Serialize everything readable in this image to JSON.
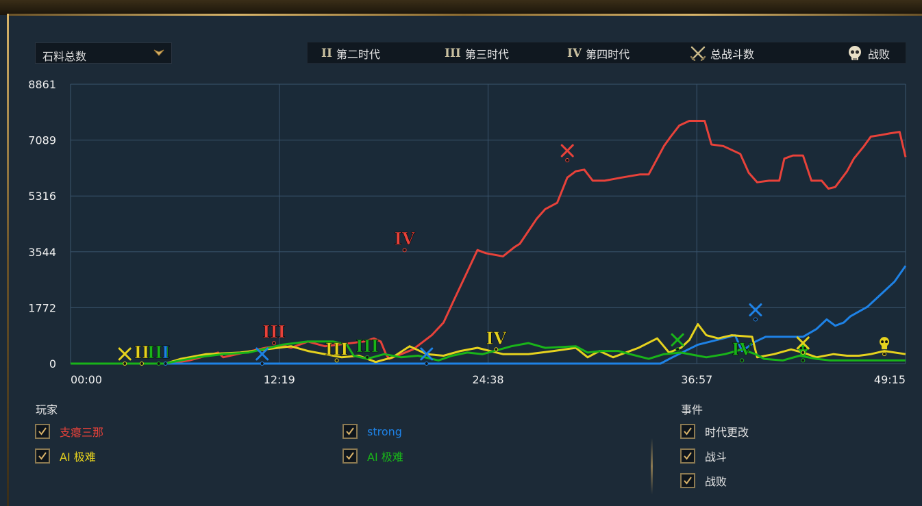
{
  "metric_dropdown": {
    "label": "石料总数",
    "icon": "chevron-down-icon"
  },
  "legend": [
    {
      "numeral": "II",
      "label": "第二时代"
    },
    {
      "numeral": "III",
      "label": "第三时代"
    },
    {
      "numeral": "IV",
      "label": "第四时代"
    },
    {
      "icon": "crossed-swords-icon",
      "label": "总战斗数"
    },
    {
      "icon": "skull-icon",
      "label": "战败"
    }
  ],
  "chart_data": {
    "type": "line",
    "y_tick_labels": [
      "0",
      "1772",
      "3544",
      "5316",
      "7089",
      "8861"
    ],
    "ylim": [
      0,
      8861
    ],
    "x_tick_labels": [
      "00:00",
      "12:19",
      "24:38",
      "36:57",
      "49:15"
    ],
    "xlim_minutes": [
      0,
      49.25
    ],
    "grid": true,
    "series": [
      {
        "name": "支瘪三那",
        "color": "#e8423a",
        "points": [
          [
            0,
            0
          ],
          [
            2,
            0
          ],
          [
            5.7,
            0
          ],
          [
            7,
            100
          ],
          [
            8.7,
            350
          ],
          [
            9,
            200
          ],
          [
            11.5,
            500
          ],
          [
            12.5,
            580
          ],
          [
            13,
            500
          ],
          [
            14,
            700
          ],
          [
            15,
            550
          ],
          [
            17.3,
            700
          ],
          [
            17.9,
            800
          ],
          [
            18.3,
            700
          ],
          [
            18.6,
            300
          ],
          [
            18.8,
            150
          ],
          [
            19.5,
            300
          ],
          [
            20.2,
            450
          ],
          [
            21.3,
            900
          ],
          [
            22,
            1300
          ],
          [
            22.6,
            2000
          ],
          [
            23.3,
            2800
          ],
          [
            24,
            3600
          ],
          [
            24.5,
            3500
          ],
          [
            25.5,
            3400
          ],
          [
            26.2,
            3700
          ],
          [
            26.5,
            3800
          ],
          [
            27.5,
            4600
          ],
          [
            28,
            4900
          ],
          [
            28.7,
            5100
          ],
          [
            29.3,
            5900
          ],
          [
            29.8,
            6100
          ],
          [
            30.3,
            6150
          ],
          [
            30.8,
            5800
          ],
          [
            31.5,
            5800
          ],
          [
            32.5,
            5900
          ],
          [
            33.6,
            6000
          ],
          [
            34.1,
            6000
          ],
          [
            34.7,
            6600
          ],
          [
            35,
            6900
          ],
          [
            35.4,
            7200
          ],
          [
            35.9,
            7550
          ],
          [
            36.5,
            7700
          ],
          [
            37.4,
            7700
          ],
          [
            37.8,
            6950
          ],
          [
            38.5,
            6900
          ],
          [
            39.5,
            6650
          ],
          [
            40,
            6050
          ],
          [
            40.5,
            5750
          ],
          [
            41.2,
            5800
          ],
          [
            41.8,
            5800
          ],
          [
            42.1,
            6500
          ],
          [
            42.6,
            6600
          ],
          [
            43.2,
            6600
          ],
          [
            43.7,
            5800
          ],
          [
            44.3,
            5800
          ],
          [
            44.7,
            5550
          ],
          [
            45.1,
            5600
          ],
          [
            45.8,
            6100
          ],
          [
            46.2,
            6500
          ],
          [
            46.8,
            6900
          ],
          [
            47.2,
            7200
          ],
          [
            47.8,
            7250
          ],
          [
            48.3,
            7300
          ],
          [
            48.9,
            7350
          ],
          [
            49.25,
            6550
          ]
        ]
      },
      {
        "name": "strong",
        "color": "#1e82e6",
        "points": [
          [
            0,
            0
          ],
          [
            12.8,
            0
          ],
          [
            14,
            0
          ],
          [
            21,
            0
          ],
          [
            29.7,
            0
          ],
          [
            34.8,
            0
          ],
          [
            35.5,
            200
          ],
          [
            37,
            600
          ],
          [
            38.5,
            800
          ],
          [
            39.2,
            900
          ],
          [
            39.6,
            400
          ],
          [
            40.4,
            700
          ],
          [
            41,
            850
          ],
          [
            42,
            850
          ],
          [
            43.2,
            850
          ],
          [
            44,
            1100
          ],
          [
            44.6,
            1400
          ],
          [
            45.1,
            1200
          ],
          [
            45.6,
            1300
          ],
          [
            46,
            1500
          ],
          [
            47,
            1800
          ],
          [
            48,
            2300
          ],
          [
            48.6,
            2600
          ],
          [
            49.25,
            3100
          ]
        ]
      },
      {
        "name": "AI 极难",
        "color": "#e6d21e",
        "points": [
          [
            0,
            0
          ],
          [
            3,
            0
          ],
          [
            5.6,
            0
          ],
          [
            6.5,
            150
          ],
          [
            8,
            300
          ],
          [
            10,
            350
          ],
          [
            11.5,
            450
          ],
          [
            13,
            550
          ],
          [
            14,
            400
          ],
          [
            16,
            200
          ],
          [
            17,
            250
          ],
          [
            18,
            50
          ],
          [
            19,
            200
          ],
          [
            20,
            550
          ],
          [
            21,
            300
          ],
          [
            22,
            250
          ],
          [
            23,
            400
          ],
          [
            24,
            500
          ],
          [
            25.5,
            300
          ],
          [
            27,
            300
          ],
          [
            28.5,
            400
          ],
          [
            29.8,
            500
          ],
          [
            30.5,
            200
          ],
          [
            31.2,
            400
          ],
          [
            32,
            200
          ],
          [
            33.5,
            500
          ],
          [
            34.6,
            800
          ],
          [
            35.3,
            350
          ],
          [
            36,
            500
          ],
          [
            36.5,
            750
          ],
          [
            37,
            1250
          ],
          [
            37.5,
            900
          ],
          [
            38.2,
            800
          ],
          [
            39,
            900
          ],
          [
            40.2,
            850
          ],
          [
            40.5,
            200
          ],
          [
            41.5,
            300
          ],
          [
            42.5,
            450
          ],
          [
            43.2,
            350
          ],
          [
            44,
            200
          ],
          [
            45,
            300
          ],
          [
            45.8,
            250
          ],
          [
            46.5,
            250
          ],
          [
            47.2,
            300
          ],
          [
            48,
            400
          ],
          [
            49.25,
            300
          ]
        ]
      },
      {
        "name": "AI 极难",
        "color": "#19b419",
        "points": [
          [
            0,
            0
          ],
          [
            3,
            0
          ],
          [
            5.6,
            0
          ],
          [
            6,
            50
          ],
          [
            7.5,
            200
          ],
          [
            9,
            300
          ],
          [
            10.5,
            350
          ],
          [
            12.5,
            600
          ],
          [
            14,
            700
          ],
          [
            15.5,
            700
          ],
          [
            16.3,
            600
          ],
          [
            16.7,
            250
          ],
          [
            17.5,
            150
          ],
          [
            18.5,
            300
          ],
          [
            19.5,
            200
          ],
          [
            20.5,
            250
          ],
          [
            21.7,
            100
          ],
          [
            22.5,
            250
          ],
          [
            23.4,
            350
          ],
          [
            24.3,
            300
          ],
          [
            25,
            400
          ],
          [
            26,
            550
          ],
          [
            27,
            650
          ],
          [
            28,
            500
          ],
          [
            29.8,
            550
          ],
          [
            30.5,
            350
          ],
          [
            31.3,
            400
          ],
          [
            32.3,
            400
          ],
          [
            33,
            300
          ],
          [
            34.1,
            150
          ],
          [
            35,
            300
          ],
          [
            36,
            350
          ],
          [
            37.5,
            200
          ],
          [
            38.6,
            300
          ],
          [
            39.6,
            450
          ],
          [
            40.4,
            300
          ],
          [
            40.9,
            150
          ],
          [
            42,
            100
          ],
          [
            43,
            250
          ],
          [
            44,
            150
          ],
          [
            44.8,
            100
          ],
          [
            46,
            100
          ],
          [
            47.5,
            100
          ],
          [
            49.25,
            100
          ]
        ]
      }
    ],
    "event_markers": [
      {
        "type": "battle",
        "color": "#e6d21e",
        "x": 3.2,
        "y": 0
      },
      {
        "type": "numeral",
        "text": "II",
        "color": "#e6d21e",
        "x": 4.2,
        "y": 0
      },
      {
        "type": "numeral",
        "text": "III",
        "color": "#19b419",
        "x": 5.2,
        "y": 0
      },
      {
        "type": "numeral",
        "text": "I",
        "color": "#1e82e6",
        "x": 5.6,
        "y": 0
      },
      {
        "type": "battle",
        "color": "#1e82e6",
        "x": 11.3,
        "y": 0
      },
      {
        "type": "numeral",
        "text": "III",
        "color": "#e8423a",
        "x": 12.0,
        "y": 650
      },
      {
        "type": "numeral",
        "text": "III",
        "color": "#e6d21e",
        "x": 15.7,
        "y": 100
      },
      {
        "type": "numeral",
        "text": "III",
        "color": "#19b419",
        "x": 17.5,
        "y": 200
      },
      {
        "type": "numeral",
        "text": "IV",
        "color": "#e8423a",
        "x": 19.7,
        "y": 3600
      },
      {
        "type": "battle",
        "color": "#1e82e6",
        "x": 21.0,
        "y": 0
      },
      {
        "type": "numeral",
        "text": "IV",
        "color": "#e6d21e",
        "x": 25.1,
        "y": 450
      },
      {
        "type": "battle",
        "color": "#e8423a",
        "x": 29.3,
        "y": 6450
      },
      {
        "type": "battle",
        "color": "#19b419",
        "x": 35.8,
        "y": 450
      },
      {
        "type": "battle",
        "color": "#1e82e6",
        "x": 40.4,
        "y": 1400
      },
      {
        "type": "numeral",
        "text": "IV",
        "color": "#19b419",
        "x": 39.6,
        "y": 100
      },
      {
        "type": "defeat",
        "color": "#19b419",
        "x": 43.2,
        "y": 100
      },
      {
        "type": "battle",
        "color": "#e6d21e",
        "x": 43.2,
        "y": 350
      },
      {
        "type": "defeat",
        "color": "#e6d21e",
        "x": 48.0,
        "y": 300
      }
    ]
  },
  "players": {
    "title": "玩家",
    "items": [
      {
        "name": "支瘪三那",
        "color": "#e8423a",
        "checked": true
      },
      {
        "name": "strong",
        "color": "#1e82e6",
        "checked": true
      },
      {
        "name": "AI 极难",
        "color": "#e6d21e",
        "checked": true
      },
      {
        "name": "AI 极难",
        "color": "#19b419",
        "checked": true
      }
    ]
  },
  "events": {
    "title": "事件",
    "items": [
      {
        "label": "时代更改",
        "checked": true
      },
      {
        "label": "战斗",
        "checked": true
      },
      {
        "label": "战败",
        "checked": true
      }
    ]
  }
}
